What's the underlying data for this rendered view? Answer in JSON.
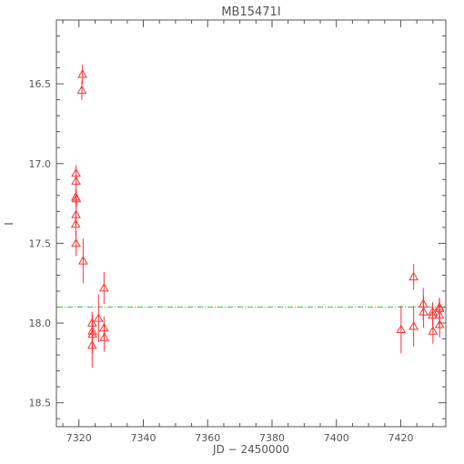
{
  "chart_data": {
    "type": "scatter",
    "title": "MB15471I",
    "xlabel": "JD − 2450000",
    "ylabel": "I",
    "xlim": [
      7313,
      7434
    ],
    "ylim": [
      18.65,
      16.1
    ],
    "y_inverted": true,
    "grid": false,
    "x_major_ticks": [
      7320,
      7340,
      7360,
      7380,
      7400,
      7420
    ],
    "x_tick_labels": [
      "7320",
      "7340",
      "7360",
      "7380",
      "7400",
      "7420"
    ],
    "y_major_ticks": [
      16.5,
      17.0,
      17.5,
      18.0,
      18.5
    ],
    "y_tick_labels": [
      "16.5",
      "17.0",
      "17.5",
      "18.0",
      "18.5"
    ],
    "reference_line": {
      "y": 17.9,
      "style": "dash-dot",
      "color": "#33cc33"
    },
    "series": [
      {
        "marker": "open-triangle",
        "color": "#ff3333",
        "points": [
          {
            "x": 7321.1,
            "y": 16.44,
            "err": 0.06
          },
          {
            "x": 7320.9,
            "y": 16.54,
            "err": 0.06
          },
          {
            "x": 7319.1,
            "y": 17.06,
            "err": 0.05
          },
          {
            "x": 7319.1,
            "y": 17.11,
            "err": 0.06
          },
          {
            "x": 7319.0,
            "y": 17.21,
            "err": 0.05
          },
          {
            "x": 7319.2,
            "y": 17.22,
            "err": 0.05
          },
          {
            "x": 7319.1,
            "y": 17.32,
            "err": 0.07
          },
          {
            "x": 7319.0,
            "y": 17.38,
            "err": 0.07
          },
          {
            "x": 7319.1,
            "y": 17.5,
            "err": 0.08
          },
          {
            "x": 7321.3,
            "y": 17.61,
            "err": 0.14
          },
          {
            "x": 7327.8,
            "y": 17.78,
            "err": 0.1
          },
          {
            "x": 7326.1,
            "y": 17.97,
            "err": 0.15
          },
          {
            "x": 7324.1,
            "y": 18.0,
            "err": 0.07
          },
          {
            "x": 7327.8,
            "y": 18.03,
            "err": 0.07
          },
          {
            "x": 7324.2,
            "y": 18.05,
            "err": 0.1
          },
          {
            "x": 7324.2,
            "y": 18.07,
            "err": 0.12
          },
          {
            "x": 7327.9,
            "y": 18.09,
            "err": 0.09
          },
          {
            "x": 7324.1,
            "y": 18.14,
            "err": 0.14
          },
          {
            "x": 7420.1,
            "y": 18.04,
            "err": 0.15
          },
          {
            "x": 7424.0,
            "y": 18.02,
            "err": 0.13
          },
          {
            "x": 7424.0,
            "y": 17.71,
            "err": 0.08
          },
          {
            "x": 7427.0,
            "y": 17.88,
            "err": 0.1
          },
          {
            "x": 7427.1,
            "y": 17.93,
            "err": 0.1
          },
          {
            "x": 7429.9,
            "y": 17.93,
            "err": 0.06
          },
          {
            "x": 7429.9,
            "y": 17.95,
            "err": 0.07
          },
          {
            "x": 7430.0,
            "y": 18.05,
            "err": 0.08
          },
          {
            "x": 7432.0,
            "y": 17.9,
            "err": 0.06
          },
          {
            "x": 7432.1,
            "y": 17.91,
            "err": 0.06
          },
          {
            "x": 7432.0,
            "y": 17.95,
            "err": 0.08
          },
          {
            "x": 7432.1,
            "y": 18.01,
            "err": 0.08
          }
        ]
      }
    ]
  }
}
